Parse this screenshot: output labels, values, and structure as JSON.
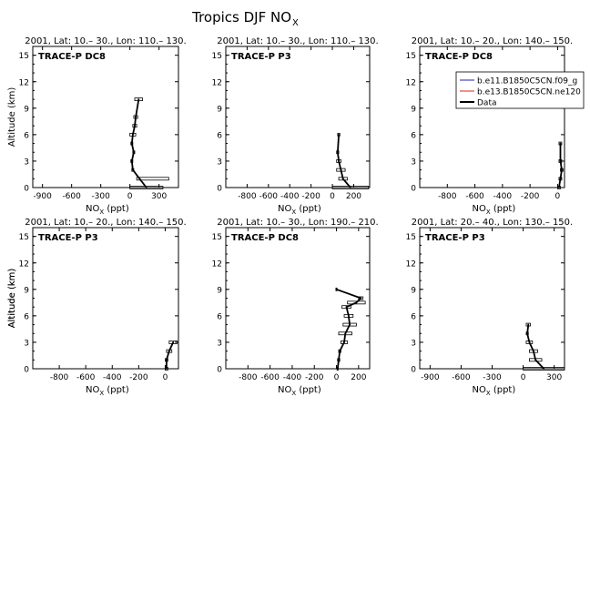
{
  "figure": {
    "title_main": "Tropics DJF NO",
    "title_sub": "X"
  },
  "legend": [
    {
      "label": "b.e11.B1850C5CN.f09_g",
      "color": "#1f1fb0",
      "width": 1
    },
    {
      "label": "b.e13.B1850C5CN.ne120",
      "color": "#e02020",
      "width": 1
    },
    {
      "label": "Data",
      "color": "#000000",
      "width": 2
    }
  ],
  "axis_text": {
    "xlabel_main": "NO",
    "xlabel_sub": "X",
    "xlabel_unit": " (ppt)",
    "ylabel": "Altitude (km)"
  },
  "chart_data": [
    {
      "type": "line",
      "header": "2001, Lat: 10.– 30., Lon: 110.– 130.",
      "campaign": "TRACE-P DC8",
      "xlim": [
        -1000,
        500
      ],
      "ylim": [
        0,
        16
      ],
      "xticks": [
        -900,
        -600,
        -300,
        0,
        300
      ],
      "yticks": [
        0,
        3,
        6,
        9,
        12,
        15
      ],
      "show_ylabel": true,
      "show_legend": false,
      "series": [
        {
          "name": "Data",
          "x": [
            170,
            100,
            30,
            20,
            40,
            20,
            30,
            50,
            60,
            90
          ],
          "y": [
            0,
            1,
            2,
            3,
            4,
            5,
            6,
            7,
            8,
            10
          ],
          "xerr_low": [
            170,
            30,
            10,
            10,
            10,
            10,
            30,
            20,
            20,
            40
          ],
          "xerr_high": [
            170,
            300,
            10,
            10,
            10,
            10,
            30,
            20,
            20,
            40
          ]
        }
      ]
    },
    {
      "type": "line",
      "header": "2001, Lat: 10.– 30., Lon: 110.– 130.",
      "campaign": "TRACE-P P3",
      "xlim": [
        -1000,
        350
      ],
      "ylim": [
        0,
        16
      ],
      "xticks": [
        -800,
        -600,
        -400,
        -200,
        0,
        200
      ],
      "yticks": [
        0,
        3,
        6,
        9,
        12,
        15
      ],
      "show_ylabel": false,
      "show_legend": false,
      "series": [
        {
          "name": "Data",
          "x": [
            170,
            100,
            80,
            60,
            50,
            60
          ],
          "y": [
            0,
            1,
            2,
            3,
            4,
            6
          ],
          "xerr_low": [
            170,
            40,
            40,
            20,
            10,
            10
          ],
          "xerr_high": [
            170,
            40,
            40,
            20,
            10,
            10
          ]
        }
      ]
    },
    {
      "type": "line",
      "header": "2001, Lat: 10.– 20., Lon: 140.– 150.",
      "campaign": "TRACE-P DC8",
      "xlim": [
        -1000,
        50
      ],
      "ylim": [
        0,
        16
      ],
      "xticks": [
        -800,
        -600,
        -400,
        -200,
        0
      ],
      "yticks": [
        0,
        3,
        6,
        9,
        12,
        15
      ],
      "show_ylabel": false,
      "show_legend": true,
      "series": [
        {
          "name": "Data",
          "x": [
            10,
            20,
            30,
            20,
            20
          ],
          "y": [
            0,
            1,
            2,
            3,
            5
          ],
          "xerr_low": [
            10,
            10,
            10,
            10,
            10
          ],
          "xerr_high": [
            10,
            10,
            10,
            10,
            10
          ]
        }
      ]
    },
    {
      "type": "line",
      "header": "2001, Lat: 10.– 20., Lon: 140.– 150.",
      "campaign": "TRACE-P P3",
      "xlim": [
        -1000,
        100
      ],
      "ylim": [
        0,
        16
      ],
      "xticks": [
        -800,
        -600,
        -400,
        -200,
        0
      ],
      "yticks": [
        0,
        3,
        6,
        9,
        12,
        15
      ],
      "show_ylabel": true,
      "show_legend": false,
      "series": [
        {
          "name": "Data",
          "x": [
            10,
            10,
            30,
            60
          ],
          "y": [
            0,
            1,
            2,
            3
          ],
          "xerr_low": [
            10,
            10,
            20,
            30
          ],
          "xerr_high": [
            10,
            10,
            20,
            30
          ]
        }
      ]
    },
    {
      "type": "line",
      "header": "2001, Lat: 10.– 30., Lon: 190.– 210.",
      "campaign": "TRACE-P DC8",
      "xlim": [
        -1000,
        300
      ],
      "ylim": [
        0,
        16
      ],
      "xticks": [
        -800,
        -600,
        -400,
        -200,
        0,
        200
      ],
      "yticks": [
        0,
        3,
        6,
        9,
        12,
        15
      ],
      "show_ylabel": false,
      "show_legend": false,
      "series": [
        {
          "name": "Data",
          "x": [
            10,
            20,
            30,
            70,
            80,
            120,
            110,
            90,
            180,
            220,
            0
          ],
          "y": [
            0,
            1,
            2,
            3,
            4,
            5,
            6,
            7,
            7.5,
            8,
            9
          ],
          "xerr_low": [
            5,
            10,
            10,
            30,
            60,
            60,
            40,
            40,
            80,
            20,
            5
          ],
          "xerr_high": [
            5,
            10,
            10,
            30,
            60,
            60,
            40,
            40,
            80,
            20,
            5
          ]
        }
      ]
    },
    {
      "type": "line",
      "header": "2001, Lat: 20.– 40., Lon: 130.– 150.",
      "campaign": "TRACE-P P3",
      "xlim": [
        -1000,
        400
      ],
      "ylim": [
        0,
        16
      ],
      "xticks": [
        -900,
        -600,
        -300,
        0,
        300
      ],
      "yticks": [
        0,
        3,
        6,
        9,
        12,
        15
      ],
      "show_ylabel": true,
      "show_legend": false,
      "series": [
        {
          "name": "Data",
          "x": [
            200,
            120,
            100,
            60,
            40,
            50
          ],
          "y": [
            0,
            1,
            2,
            3,
            4,
            5
          ],
          "xerr_low": [
            200,
            60,
            40,
            30,
            10,
            20
          ],
          "xerr_high": [
            200,
            60,
            40,
            30,
            10,
            20
          ]
        }
      ]
    }
  ]
}
